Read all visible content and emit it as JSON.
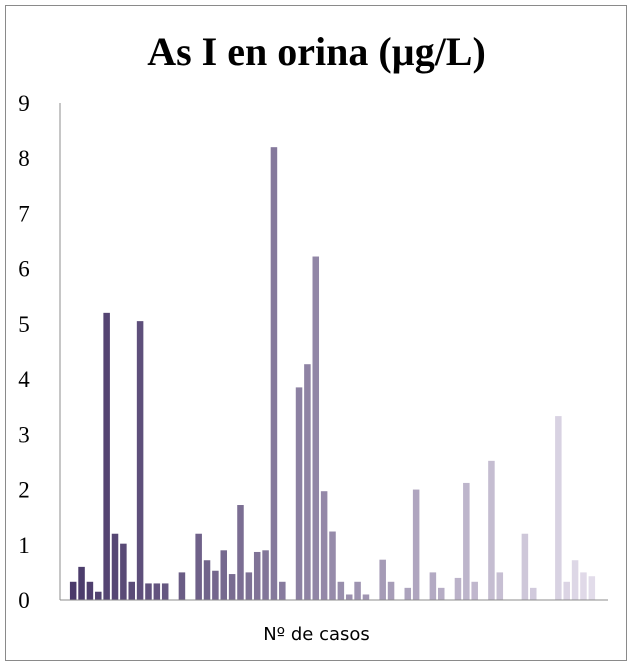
{
  "chart_data": {
    "type": "bar",
    "title": "As I en orina (µg/L)",
    "xlabel": "Nº de casos",
    "ylabel": "",
    "ylim": [
      0,
      9
    ],
    "yticks": [
      "0",
      "1",
      "2",
      "3",
      "4",
      "5",
      "6",
      "7",
      "8",
      "9"
    ],
    "grid": false,
    "legend": "none",
    "color_gradient": [
      "#4a3a6a",
      "#e2dcea"
    ],
    "values": [
      0.33,
      0.6,
      0.33,
      0.15,
      5.2,
      1.2,
      1.02,
      0.33,
      5.05,
      0.3,
      0.3,
      0.3,
      0,
      0.5,
      0,
      1.2,
      0.72,
      0.53,
      0.9,
      0.47,
      1.72,
      0.5,
      0.87,
      0.9,
      8.2,
      0.33,
      0,
      3.85,
      4.27,
      6.22,
      1.97,
      1.24,
      0.33,
      0.1,
      0.33,
      0.1,
      0,
      0.73,
      0.33,
      0,
      0.22,
      2.0,
      0,
      0.5,
      0.22,
      0,
      0.4,
      2.12,
      0.33,
      0,
      2.52,
      0.5,
      0,
      0,
      1.2,
      0.22,
      0,
      0,
      3.33,
      0.33,
      0.72,
      0.5,
      0.43
    ]
  }
}
